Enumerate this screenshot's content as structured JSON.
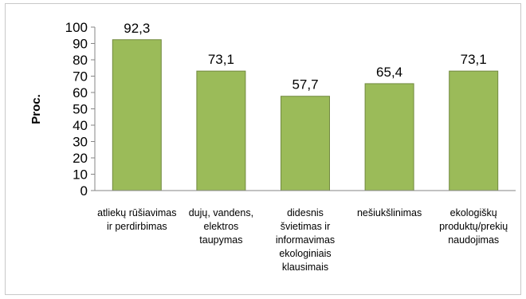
{
  "chart_data": {
    "type": "bar",
    "categories": [
      "atliekų rūšiavimas ir perdirbimas",
      "dujų, vandens, elektros taupymas",
      "didesnis švietimas ir informavimas ekologiniais klausimais",
      "nešiukšlinimas",
      "ekologiškų produktų/prekių naudojimas"
    ],
    "values": [
      92.3,
      73.1,
      57.7,
      65.4,
      73.1
    ],
    "data_labels": [
      "92,3",
      "73,1",
      "57,7",
      "65,4",
      "73,1"
    ],
    "ylabel": "Proc.",
    "ylim": [
      0,
      100
    ],
    "yticks": [
      0,
      10,
      20,
      30,
      40,
      50,
      60,
      70,
      80,
      90,
      100
    ],
    "grid": false,
    "legend": "none",
    "bar_color": "#9BBB59",
    "bar_edge_color": "#71893F"
  }
}
